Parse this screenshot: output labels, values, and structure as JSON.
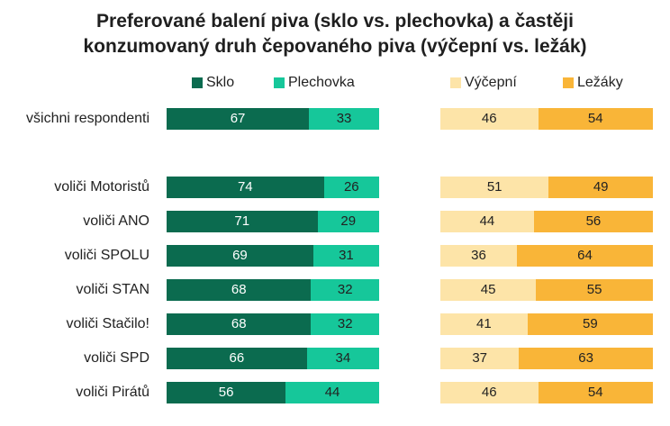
{
  "title_line1": "Preferované balení piva (sklo vs. plechovka) a častěji",
  "title_line2": "konzumovaný druh čepovaného piva (výčepní vs. ležák)",
  "colors": {
    "sklo": "#0b6b4f",
    "plechovka": "#16c79a",
    "vycepni": "#fde4a8",
    "lezaky": "#f9b538",
    "dark_text": "#ffffff",
    "light_text": "#222222"
  },
  "chart_data": [
    {
      "type": "bar",
      "stacked": "100%",
      "orientation": "horizontal",
      "categories": [
        "všichni respondenti",
        "voliči Motoristů",
        "voliči ANO",
        "voliči SPOLU",
        "voliči STAN",
        "voliči Stačilo!",
        "voliči SPD",
        "voliči Pirátů"
      ],
      "series": [
        {
          "name": "Sklo",
          "values": [
            67,
            74,
            71,
            69,
            68,
            68,
            66,
            56
          ]
        },
        {
          "name": "Plechovka",
          "values": [
            33,
            26,
            29,
            31,
            32,
            32,
            34,
            44
          ]
        }
      ],
      "xlim": [
        0,
        100
      ],
      "legend": "top"
    },
    {
      "type": "bar",
      "stacked": "100%",
      "orientation": "horizontal",
      "categories": [
        "všichni respondenti",
        "voliči Motoristů",
        "voliči ANO",
        "voliči SPOLU",
        "voliči STAN",
        "voliči Stačilo!",
        "voliči SPD",
        "voliči Pirátů"
      ],
      "series": [
        {
          "name": "Výčepní",
          "values": [
            46,
            51,
            44,
            36,
            45,
            41,
            37,
            46
          ]
        },
        {
          "name": "Ležáky",
          "values": [
            54,
            49,
            56,
            64,
            55,
            59,
            63,
            54
          ]
        }
      ],
      "xlim": [
        0,
        100
      ],
      "legend": "top"
    }
  ]
}
